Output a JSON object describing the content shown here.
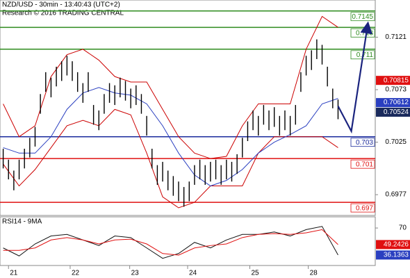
{
  "chart_data": {
    "type": "ohlc",
    "title": "NZD/USD - 30min - 13:40:43 (UTC+2)",
    "subtitle": "Research © 2016 TRADING CENTRAL",
    "color": "#000000",
    "xlim": [
      -0.6,
      70
    ],
    "ylim": [
      0.6958,
      0.7155
    ],
    "yticks": [
      0.7121,
      0.7073,
      0.7025,
      0.6977
    ],
    "xticks": [
      {
        "value": 1,
        "label": "21"
      },
      {
        "value": 12.6,
        "label": "22"
      },
      {
        "value": 23.8,
        "label": "23"
      },
      {
        "value": 34.7,
        "label": "24"
      },
      {
        "value": 46.4,
        "label": "25"
      },
      {
        "value": 57.4,
        "label": "28"
      }
    ],
    "high": [
      0.7019,
      0.7009,
      0.6999,
      0.7009,
      0.7019,
      0.7029,
      0.7039,
      0.7069,
      0.7089,
      0.7084,
      0.7094,
      0.7099,
      0.7104,
      0.7099,
      0.7089,
      0.7079,
      0.7089,
      0.7059,
      0.7054,
      0.7069,
      0.7079,
      0.7077,
      0.7084,
      0.7081,
      0.7074,
      0.7077,
      0.7069,
      0.7049,
      0.7019,
      0.7004,
      0.7007,
      0.6999,
      0.6994,
      0.6989,
      0.6984,
      0.6989,
      0.7004,
      0.7009,
      0.7004,
      0.7007,
      0.7009,
      0.7004,
      0.7009,
      0.7007,
      0.7014,
      0.7029,
      0.7044,
      0.7054,
      0.7049,
      0.7059,
      0.7054,
      0.7057,
      0.7049,
      0.7054,
      0.7049,
      0.7059,
      0.7089,
      0.7104,
      0.7109,
      0.7119,
      0.7114,
      0.7094,
      0.7074,
      0.7064
    ],
    "low": [
      0.7001,
      0.6991,
      0.6981,
      0.6991,
      0.7001,
      0.7011,
      0.7021,
      0.7051,
      0.7071,
      0.7066,
      0.7076,
      0.7081,
      0.7086,
      0.7081,
      0.7071,
      0.7061,
      0.7071,
      0.7041,
      0.7036,
      0.7051,
      0.7061,
      0.7059,
      0.7066,
      0.7063,
      0.7056,
      0.7059,
      0.7051,
      0.7031,
      0.7001,
      0.6986,
      0.6989,
      0.6981,
      0.6976,
      0.6971,
      0.6966,
      0.6971,
      0.6986,
      0.6991,
      0.6986,
      0.6989,
      0.6991,
      0.6986,
      0.6991,
      0.6989,
      0.6996,
      0.7011,
      0.7026,
      0.7036,
      0.7031,
      0.7041,
      0.7036,
      0.7039,
      0.7031,
      0.7036,
      0.7031,
      0.7041,
      0.7071,
      0.7086,
      0.7091,
      0.7101,
      0.7096,
      0.7076,
      0.7056,
      0.7046
    ],
    "bands": {
      "x": [
        0,
        3,
        6,
        9,
        12,
        15,
        18,
        21,
        24,
        27,
        30,
        33,
        36,
        39,
        42,
        45,
        48,
        51,
        54,
        57,
        60,
        63
      ],
      "series": [
        {
          "color": "#cc0000",
          "values": [
            0.706,
            0.703,
            0.704,
            0.7085,
            0.7105,
            0.711,
            0.71,
            0.7085,
            0.708,
            0.708,
            0.7055,
            0.703,
            0.7015,
            0.701,
            0.7012,
            0.704,
            0.706,
            0.706,
            0.706,
            0.711,
            0.714,
            0.713
          ]
        },
        {
          "color": "#cc0000",
          "values": [
            0.7005,
            0.6985,
            0.7,
            0.702,
            0.704,
            0.7045,
            0.704,
            0.7055,
            0.705,
            0.7015,
            0.6975,
            0.6965,
            0.697,
            0.6985,
            0.6985,
            0.6985,
            0.7015,
            0.703,
            0.703,
            0.703,
            0.703,
            0.702
          ]
        },
        {
          "color": "#2a3fc0",
          "values": [
            0.702,
            0.7015,
            0.7015,
            0.703,
            0.7055,
            0.707,
            0.7075,
            0.707,
            0.7068,
            0.706,
            0.704,
            0.7015,
            0.6995,
            0.6985,
            0.699,
            0.7,
            0.7015,
            0.7025,
            0.7032,
            0.704,
            0.706,
            0.7065
          ]
        }
      ]
    },
    "levels": [
      {
        "value": 0.7145,
        "color": "#2e8b1e"
      },
      {
        "value": 0.713,
        "color": "#2e8b1e"
      },
      {
        "value": 0.711,
        "color": "#2e8b1e"
      },
      {
        "value": 0.703,
        "color": "#1a2a9c"
      },
      {
        "value": 0.701,
        "color": "#e01010"
      },
      {
        "value": 0.697,
        "color": "#e01010"
      }
    ],
    "price_tags": [
      {
        "value": 0.70815,
        "color": "#e01010"
      },
      {
        "value": 0.70612,
        "color": "#2a3fc0"
      },
      {
        "value": 0.70524,
        "color": "#1a2a5c"
      }
    ],
    "projection": {
      "color": "#1a237e",
      "x": [
        63,
        65.5,
        68.5
      ],
      "values": [
        0.7058,
        0.7035,
        0.713
      ]
    },
    "rsi": {
      "title": "RSI14 - 9MA",
      "ylim": [
        23,
        84
      ],
      "yticks": [
        70
      ],
      "x": [
        0,
        3,
        6,
        9,
        12,
        15,
        18,
        21,
        24,
        27,
        30,
        33,
        36,
        39,
        42,
        45,
        48,
        51,
        54,
        57,
        60,
        63
      ],
      "series": [
        {
          "color": "#111111",
          "values": [
            45,
            35,
            50,
            60,
            62,
            55,
            48,
            60,
            58,
            45,
            32,
            38,
            52,
            45,
            55,
            62,
            62,
            65,
            60,
            68,
            72,
            36.1363
          ]
        },
        {
          "color": "#e01010",
          "values": [
            42,
            42,
            45,
            55,
            58,
            55,
            50,
            55,
            56,
            50,
            38,
            36,
            45,
            48,
            50,
            58,
            62,
            63,
            62,
            64,
            68,
            49.2426
          ]
        }
      ],
      "tags": [
        {
          "value": 49.2426,
          "color": "#e01010"
        },
        {
          "value": 36.1363,
          "color": "#2a3fc0"
        }
      ]
    }
  }
}
